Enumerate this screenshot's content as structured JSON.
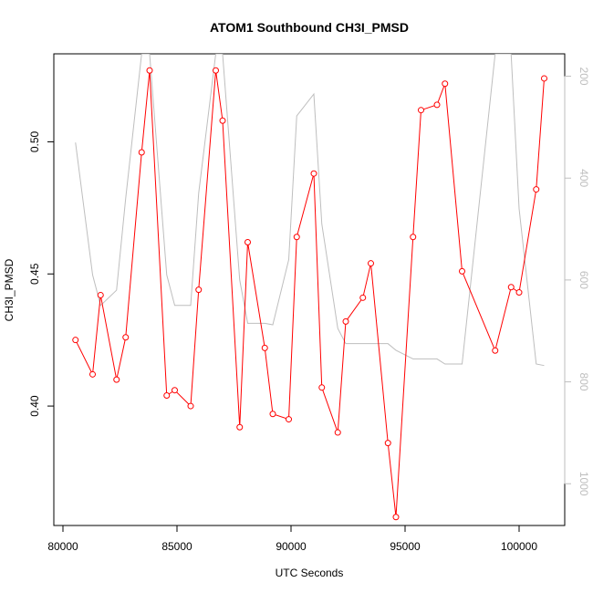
{
  "chart_data": {
    "type": "line",
    "title": "ATOM1 Southbound CH3I_PMSD",
    "xlabel": "UTC Seconds",
    "ylabel": "CH3I_PMSD",
    "xlim": [
      79600,
      102000
    ],
    "ylim": [
      0.3548,
      0.5333
    ],
    "y2lim": [
      1082,
      156
    ],
    "x_ticks": [
      80000,
      85000,
      90000,
      95000,
      100000
    ],
    "y_ticks": [
      0.4,
      0.45,
      0.5
    ],
    "y2_ticks": [
      200,
      400,
      600,
      800,
      1000
    ],
    "grid": false,
    "legend": "none",
    "series": [
      {
        "color": "#ff0000",
        "axis": "left",
        "style": "line+open-circle",
        "x": [
          80550,
          81300,
          81650,
          82350,
          82750,
          83450,
          83800,
          84550,
          84900,
          85600,
          85950,
          86700,
          87000,
          87750,
          88100,
          88850,
          89200,
          89900,
          90250,
          91000,
          91350,
          92050,
          92400,
          93150,
          93500,
          94250,
          94600,
          95350,
          95700,
          96400,
          96750,
          97500,
          98950,
          99650,
          100000,
          100750,
          101100
        ],
        "y": [
          0.425,
          0.412,
          0.442,
          0.41,
          0.426,
          0.496,
          0.527,
          0.404,
          0.406,
          0.4,
          0.444,
          0.527,
          0.508,
          0.392,
          0.462,
          0.422,
          0.397,
          0.395,
          0.464,
          0.488,
          0.407,
          0.39,
          0.432,
          0.441,
          0.454,
          0.386,
          0.358,
          0.464,
          0.512,
          0.514,
          0.522,
          0.451,
          0.421,
          0.445,
          0.443,
          0.482,
          0.524
        ]
      },
      {
        "color": "#bebebe",
        "axis": "right",
        "style": "line",
        "x": [
          80550,
          81300,
          81650,
          82350,
          82750,
          83450,
          83800,
          84550,
          84900,
          85600,
          85950,
          86700,
          87000,
          87750,
          88100,
          88850,
          89200,
          89900,
          90250,
          91000,
          91350,
          92050,
          92400,
          93150,
          93500,
          94250,
          94600,
          95350,
          95700,
          96400,
          96750,
          97500,
          98950,
          99650,
          100000,
          100750,
          101100
        ],
        "y": [
          330,
          590,
          650,
          620,
          440,
          156,
          156,
          590,
          650,
          650,
          430,
          156,
          156,
          600,
          685,
          685,
          688,
          560,
          278,
          235,
          490,
          695,
          725,
          725,
          725,
          725,
          738,
          755,
          755,
          755,
          765,
          765,
          156,
          156,
          460,
          765,
          768
        ]
      }
    ]
  }
}
